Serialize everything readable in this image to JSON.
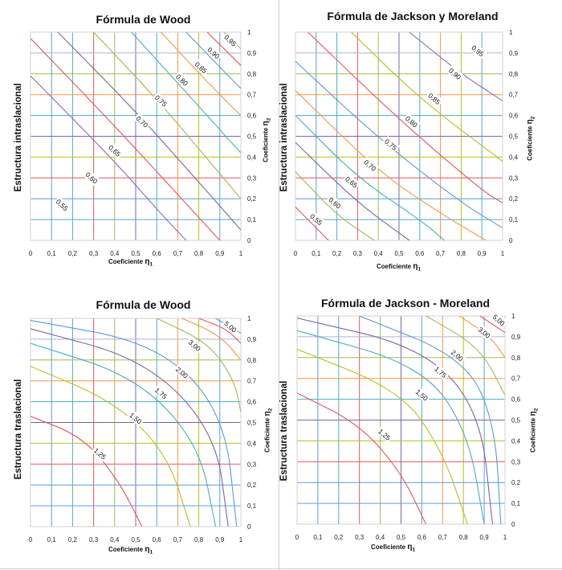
{
  "colors": {
    "grid_h": [
      "#d3d3d3",
      "#5aa0e0",
      "#5b9bd5",
      "#e15759",
      "#bcbd22",
      "#8064a2",
      "#4bacc6",
      "#f79646",
      "#9bbb59",
      "#b0b0d8",
      "#c0c0c0"
    ],
    "grid_v": [
      "#d3d3d3",
      "#5b9bd5",
      "#4bacc6",
      "#e15759",
      "#9bbb59",
      "#8064a2",
      "#4bacc6",
      "#f79646",
      "#bcbd22",
      "#5aa0e0",
      "#c0c0c0"
    ],
    "wood_intra": [
      "#9467bd",
      "#e15759",
      "#8064a2",
      "#9bbb59",
      "#4bacc6",
      "#f79646",
      "#5b9bd5",
      "#e15759",
      "#9bbb59",
      "#8064a2"
    ],
    "jm_intra": [
      "#e15759",
      "#9bbb59",
      "#8064a2",
      "#4bacc6",
      "#f79646",
      "#5b9bd5",
      "#e15759",
      "#bcbd22",
      "#9467bd",
      "#4bacc6"
    ],
    "tras": [
      "#e15759",
      "#bcbd22",
      "#4bacc6",
      "#8064a2",
      "#5b9bd5",
      "#9bbb59",
      "#f79646",
      "#e15759",
      "#4bacc6",
      "#8064a2"
    ]
  },
  "chart_data": [
    {
      "type": "line",
      "title": "Fórmula de Wood",
      "ylabel": "Estructura intraslacional",
      "xlabel_main": "Coeficiente ",
      "xlabel_sym": "η",
      "xlabel_sub": "1",
      "y2label_main": "Coeficiente ",
      "y2label_sym": "η",
      "y2label_sub": "2",
      "xlim": [
        0,
        1
      ],
      "ylim": [
        0,
        1
      ],
      "x_ticks": [
        "0",
        "0,1",
        "0,2",
        "0,3",
        "0,4",
        "0,5",
        "0,6",
        "0,7",
        "0,8",
        "0,9",
        "1"
      ],
      "y_ticks": [
        "0",
        "0,1",
        "0,2",
        "0,3",
        "0,4",
        "0,5",
        "0,6",
        "0,7",
        "0,8",
        "0,9",
        "1"
      ],
      "grid": true,
      "series": [
        {
          "label": "0,55",
          "points": [
            [
              0,
              0.79
            ],
            [
              0.4,
              0.38
            ],
            [
              0.6,
              0.15
            ],
            [
              0.74,
              0
            ]
          ]
        },
        {
          "label": "0,60",
          "points": [
            [
              0,
              0.97
            ],
            [
              0.4,
              0.55
            ],
            [
              0.7,
              0.22
            ],
            [
              0.9,
              0
            ]
          ]
        },
        {
          "label": "0,65",
          "points": [
            [
              0.13,
              1
            ],
            [
              0.5,
              0.62
            ],
            [
              0.8,
              0.28
            ],
            [
              1,
              0.05
            ]
          ]
        },
        {
          "label": "0,70",
          "points": [
            [
              0.3,
              1
            ],
            [
              0.6,
              0.68
            ],
            [
              0.9,
              0.32
            ],
            [
              1,
              0.2
            ]
          ]
        },
        {
          "label": "0,75",
          "points": [
            [
              0.48,
              1
            ],
            [
              0.75,
              0.7
            ],
            [
              1,
              0.42
            ]
          ]
        },
        {
          "label": "0,80",
          "points": [
            [
              0.62,
              1
            ],
            [
              0.85,
              0.75
            ],
            [
              1,
              0.6
            ]
          ]
        },
        {
          "label": "0,85",
          "points": [
            [
              0.74,
              1
            ],
            [
              0.95,
              0.78
            ],
            [
              1,
              0.73
            ]
          ]
        },
        {
          "label": "0,90",
          "points": [
            [
              0.84,
              1
            ],
            [
              1,
              0.84
            ]
          ]
        },
        {
          "label": "0,95",
          "points": [
            [
              0.92,
              1
            ],
            [
              1,
              0.92
            ]
          ]
        }
      ],
      "labels": [
        {
          "text": "0,55",
          "x": 0.15,
          "y": 0.17,
          "rot": 42
        },
        {
          "text": "0,60",
          "x": 0.29,
          "y": 0.3,
          "rot": 42
        },
        {
          "text": "0,65",
          "x": 0.4,
          "y": 0.43,
          "rot": 42
        },
        {
          "text": "0,70",
          "x": 0.53,
          "y": 0.57,
          "rot": 42
        },
        {
          "text": "0,75",
          "x": 0.62,
          "y": 0.67,
          "rot": 42
        },
        {
          "text": "0,80",
          "x": 0.72,
          "y": 0.77,
          "rot": 42
        },
        {
          "text": "0,85",
          "x": 0.81,
          "y": 0.83,
          "rot": 42
        },
        {
          "text": "0,90",
          "x": 0.87,
          "y": 0.9,
          "rot": 42
        },
        {
          "text": "0,95",
          "x": 0.95,
          "y": 0.96,
          "rot": 42
        }
      ]
    },
    {
      "type": "line",
      "title": "Fórmula de Jackson y Moreland",
      "ylabel": "Estructura intraslacional",
      "xlabel_main": "Coeficiente ",
      "xlabel_sym": "η",
      "xlabel_sub": "1",
      "y2label_main": "Coeficiente ",
      "y2label_sym": "η",
      "y2label_sub": "2",
      "xlim": [
        0,
        1
      ],
      "ylim": [
        0,
        1
      ],
      "x_ticks": [
        "0",
        "0,1",
        "0,2",
        "0,3",
        "0,4",
        "0,5",
        "0,6",
        "0,7",
        "0,8",
        "0,9",
        "1"
      ],
      "y_ticks": [
        "0",
        "0,1",
        "0,2",
        "0,3",
        "0,4",
        "0,5",
        "0,6",
        "0,7",
        "0,8",
        "0,9",
        "1"
      ],
      "grid": true,
      "series": [
        {
          "label": "0,55",
          "points": [
            [
              0,
              0.16
            ],
            [
              0.1,
              0.06
            ],
            [
              0.16,
              0
            ]
          ]
        },
        {
          "label": "0,60",
          "points": [
            [
              0,
              0.33
            ],
            [
              0.2,
              0.12
            ],
            [
              0.38,
              0
            ]
          ]
        },
        {
          "label": "0,65",
          "points": [
            [
              0,
              0.47
            ],
            [
              0.3,
              0.18
            ],
            [
              0.55,
              0
            ]
          ]
        },
        {
          "label": "0,70",
          "points": [
            [
              0,
              0.6
            ],
            [
              0.3,
              0.3
            ],
            [
              0.6,
              0.1
            ],
            [
              0.72,
              0
            ]
          ]
        },
        {
          "label": "0,75",
          "points": [
            [
              0,
              0.72
            ],
            [
              0.4,
              0.33
            ],
            [
              0.7,
              0.13
            ],
            [
              0.92,
              0
            ]
          ]
        },
        {
          "label": "0,80",
          "points": [
            [
              0,
              0.86
            ],
            [
              0.4,
              0.49
            ],
            [
              0.8,
              0.18
            ],
            [
              1,
              0.06
            ]
          ]
        },
        {
          "label": "0,85",
          "points": [
            [
              0.06,
              1
            ],
            [
              0.5,
              0.58
            ],
            [
              0.9,
              0.24
            ],
            [
              1,
              0.18
            ]
          ]
        },
        {
          "label": "0,90",
          "points": [
            [
              0.27,
              1
            ],
            [
              0.6,
              0.68
            ],
            [
              1,
              0.38
            ]
          ]
        },
        {
          "label": "0,95",
          "points": [
            [
              0.55,
              1
            ],
            [
              0.8,
              0.8
            ],
            [
              1,
              0.67
            ]
          ]
        }
      ],
      "labels": [
        {
          "text": "0,55",
          "x": 0.1,
          "y": 0.1,
          "rot": 40
        },
        {
          "text": "0,60",
          "x": 0.19,
          "y": 0.18,
          "rot": 40
        },
        {
          "text": "0,65",
          "x": 0.27,
          "y": 0.28,
          "rot": 40
        },
        {
          "text": "0,70",
          "x": 0.36,
          "y": 0.36,
          "rot": 40
        },
        {
          "text": "0,75",
          "x": 0.46,
          "y": 0.46,
          "rot": 40
        },
        {
          "text": "0,80",
          "x": 0.56,
          "y": 0.57,
          "rot": 40
        },
        {
          "text": "0,85",
          "x": 0.67,
          "y": 0.68,
          "rot": 40
        },
        {
          "text": "0,90",
          "x": 0.77,
          "y": 0.8,
          "rot": 40
        },
        {
          "text": "0,95",
          "x": 0.88,
          "y": 0.91,
          "rot": 40
        }
      ]
    },
    {
      "type": "line",
      "title": "Fórmula de Wood",
      "ylabel": "Estructura traslacional",
      "xlabel_main": "Coeficiente ",
      "xlabel_sym": "η",
      "xlabel_sub": "1",
      "y2label_main": "Coeficiente ",
      "y2label_sym": "η",
      "y2label_sub": "2",
      "xlim": [
        0,
        1
      ],
      "ylim": [
        0,
        1
      ],
      "x_ticks": [
        "0",
        "0,1",
        "0,2",
        "0,3",
        "0,4",
        "0,5",
        "0,6",
        "0,7",
        "0,8",
        "0,9",
        "1"
      ],
      "y_ticks": [
        "0",
        "0,1",
        "0,2",
        "0,3",
        "0,4",
        "0,5",
        "0,6",
        "0,7",
        "0,8",
        "0,9",
        "1"
      ],
      "grid": true,
      "series": [
        {
          "label": "1,25",
          "points": [
            [
              0,
              0.53
            ],
            [
              0.25,
              0.43
            ],
            [
              0.42,
              0.22
            ],
            [
              0.53,
              0
            ]
          ]
        },
        {
          "label": "1,50",
          "points": [
            [
              0,
              0.77
            ],
            [
              0.4,
              0.6
            ],
            [
              0.65,
              0.35
            ],
            [
              0.76,
              0
            ]
          ]
        },
        {
          "label": "1,75",
          "points": [
            [
              0,
              0.88
            ],
            [
              0.5,
              0.72
            ],
            [
              0.8,
              0.4
            ],
            [
              0.88,
              0
            ]
          ]
        },
        {
          "label": "2,00",
          "points": [
            [
              0,
              0.95
            ],
            [
              0.55,
              0.8
            ],
            [
              0.88,
              0.45
            ],
            [
              0.94,
              0
            ]
          ]
        },
        {
          "label": "",
          "points": [
            [
              0,
              0.99
            ],
            [
              0.6,
              0.88
            ],
            [
              0.92,
              0.55
            ],
            [
              0.98,
              0
            ]
          ]
        },
        {
          "label": "3,00",
          "points": [
            [
              0.6,
              1
            ],
            [
              0.85,
              0.88
            ],
            [
              0.97,
              0.7
            ],
            [
              1,
              0.55
            ]
          ]
        },
        {
          "label": "",
          "points": [
            [
              0.72,
              1
            ],
            [
              0.9,
              0.92
            ],
            [
              1,
              0.8
            ]
          ]
        },
        {
          "label": "",
          "points": [
            [
              0.8,
              1
            ],
            [
              0.93,
              0.95
            ],
            [
              1,
              0.88
            ]
          ]
        },
        {
          "label": "5,00",
          "points": [
            [
              0.88,
              1
            ],
            [
              1,
              0.93
            ]
          ]
        }
      ],
      "labels": [
        {
          "text": "1,25",
          "x": 0.33,
          "y": 0.35,
          "rot": 40
        },
        {
          "text": "1,50",
          "x": 0.5,
          "y": 0.52,
          "rot": 40
        },
        {
          "text": "1,75",
          "x": 0.62,
          "y": 0.64,
          "rot": 40
        },
        {
          "text": "2,00",
          "x": 0.72,
          "y": 0.74,
          "rot": 40
        },
        {
          "text": "3,00",
          "x": 0.78,
          "y": 0.87,
          "rot": 40
        },
        {
          "text": "5,00",
          "x": 0.95,
          "y": 0.96,
          "rot": 40
        }
      ]
    },
    {
      "type": "line",
      "title": "Fórmula de Jackson - Moreland",
      "ylabel": "Estructura traslacional",
      "xlabel_main": "Coeficiente ",
      "xlabel_sym": "η",
      "xlabel_sub": "1",
      "y2label_main": "Coeficiente ",
      "y2label_sym": "η",
      "y2label_sub": "2",
      "xlim": [
        0,
        1
      ],
      "ylim": [
        0,
        1
      ],
      "x_ticks": [
        "0",
        "0,1",
        "0,2",
        "0,3",
        "0,4",
        "0,5",
        "0,6",
        "0,7",
        "0,8",
        "0,9",
        "1"
      ],
      "y_ticks": [
        "0",
        "0,1",
        "0,2",
        "0,3",
        "0,4",
        "0,5",
        "0,6",
        "0,7",
        "0,8",
        "0,9",
        "1"
      ],
      "grid": true,
      "series": [
        {
          "label": "1,25",
          "points": [
            [
              0,
              0.63
            ],
            [
              0.3,
              0.48
            ],
            [
              0.5,
              0.25
            ],
            [
              0.62,
              0
            ]
          ]
        },
        {
          "label": "1,50",
          "points": [
            [
              0,
              0.84
            ],
            [
              0.5,
              0.64
            ],
            [
              0.7,
              0.35
            ],
            [
              0.82,
              0
            ]
          ]
        },
        {
          "label": "1,75",
          "points": [
            [
              0,
              0.93
            ],
            [
              0.6,
              0.76
            ],
            [
              0.82,
              0.45
            ],
            [
              0.9,
              0
            ]
          ]
        },
        {
          "label": "2,00",
          "points": [
            [
              0,
              0.99
            ],
            [
              0.6,
              0.85
            ],
            [
              0.88,
              0.55
            ],
            [
              0.94,
              0
            ]
          ]
        },
        {
          "label": "",
          "points": [
            [
              0.3,
              1
            ],
            [
              0.8,
              0.8
            ],
            [
              0.95,
              0.5
            ],
            [
              0.98,
              0
            ]
          ]
        },
        {
          "label": "3,00",
          "points": [
            [
              0.62,
              1
            ],
            [
              0.88,
              0.85
            ],
            [
              1,
              0.62
            ]
          ]
        },
        {
          "label": "",
          "points": [
            [
              0.78,
              1
            ],
            [
              0.93,
              0.9
            ],
            [
              1,
              0.8
            ]
          ]
        },
        {
          "label": "5,00",
          "points": [
            [
              0.88,
              1
            ],
            [
              1,
              0.92
            ]
          ]
        }
      ],
      "labels": [
        {
          "text": "1,25",
          "x": 0.42,
          "y": 0.43,
          "rot": 40
        },
        {
          "text": "1,50",
          "x": 0.6,
          "y": 0.62,
          "rot": 40
        },
        {
          "text": "1,75",
          "x": 0.69,
          "y": 0.73,
          "rot": 40
        },
        {
          "text": "2,00",
          "x": 0.77,
          "y": 0.81,
          "rot": 40
        },
        {
          "text": "3,00",
          "x": 0.9,
          "y": 0.92,
          "rot": 40
        },
        {
          "text": "5,00",
          "x": 0.97,
          "y": 0.98,
          "rot": 40
        }
      ]
    }
  ]
}
